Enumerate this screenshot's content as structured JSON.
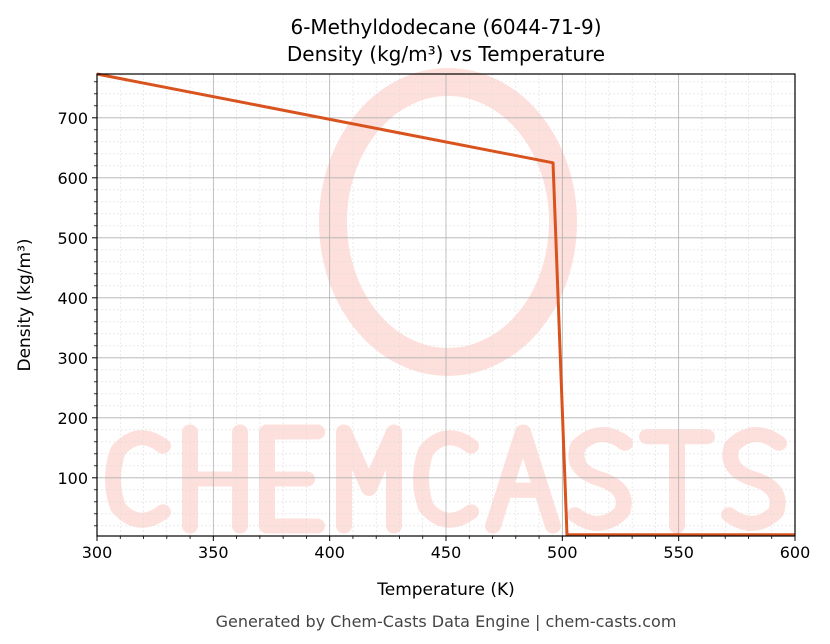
{
  "chart_data": {
    "type": "line",
    "title": "6-Methyldodecane (6044-71-9)",
    "subtitle": "Density (kg/m³) vs Temperature",
    "xlabel": "Temperature (K)",
    "ylabel": "Density (kg/m³)",
    "xlim": [
      300,
      600
    ],
    "ylim": [
      3,
      773
    ],
    "xticks": [
      300,
      350,
      400,
      450,
      500,
      550,
      600
    ],
    "yticks": [
      100,
      200,
      300,
      400,
      500,
      600,
      700
    ],
    "grid": true,
    "line_color": "#d9531e",
    "series": [
      {
        "x": [
          300,
          496,
          502,
          600
        ],
        "y": [
          773,
          625,
          5,
          5
        ]
      }
    ],
    "watermark": "CHEMCASTS",
    "footer": "Generated by Chem-Casts Data Engine | chem-casts.com"
  }
}
